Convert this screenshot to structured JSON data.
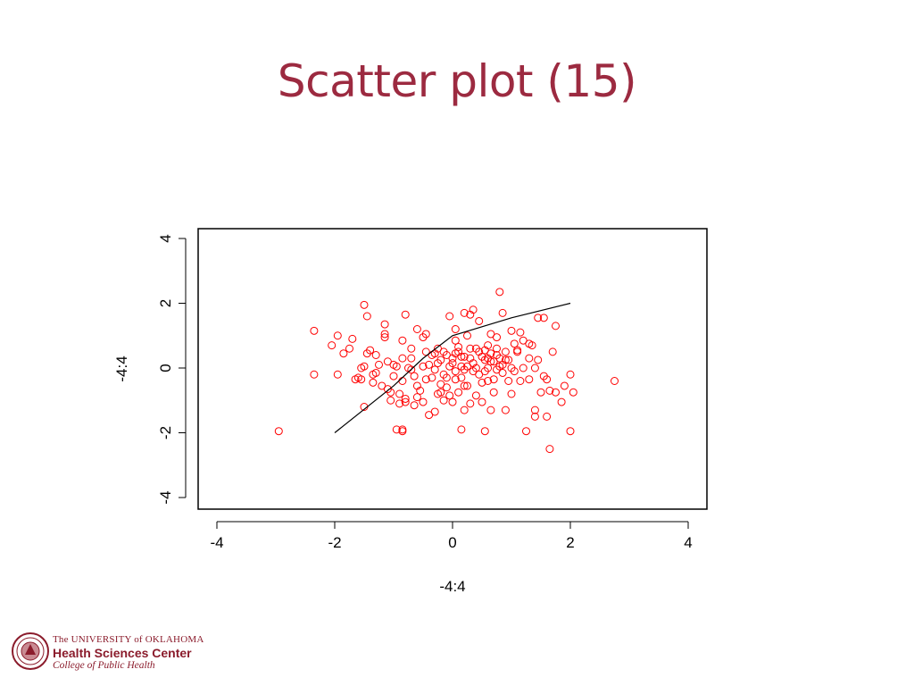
{
  "slide": {
    "title": "Scatter plot (15)"
  },
  "logo": {
    "line1": "The UNIVERSITY of OKLAHOMA",
    "line2": "Health Sciences Center",
    "line3": "College of Public Health"
  },
  "colors": {
    "title": "#9c2a40",
    "points": "#ff0000",
    "line": "#000000",
    "logo": "#8b1c2c"
  },
  "chart_data": {
    "type": "scatter",
    "xlabel": "-4:4",
    "ylabel": "-4:4",
    "xlim": [
      -4,
      4
    ],
    "ylim": [
      -4,
      4
    ],
    "xticks": [
      -4,
      -2,
      0,
      2,
      4
    ],
    "yticks": [
      -4,
      -2,
      0,
      2,
      4
    ],
    "grid": false,
    "series": [
      {
        "type": "scatter",
        "marker": "open-circle",
        "color": "#ff0000",
        "points": [
          [
            -2.95,
            -1.95
          ],
          [
            -2.35,
            1.15
          ],
          [
            -2.35,
            -0.2
          ],
          [
            -2.05,
            0.7
          ],
          [
            -1.95,
            1.0
          ],
          [
            -1.95,
            -0.2
          ],
          [
            -1.85,
            0.45
          ],
          [
            -1.75,
            0.6
          ],
          [
            -1.7,
            0.9
          ],
          [
            -1.65,
            -0.35
          ],
          [
            -1.55,
            -0.35
          ],
          [
            -1.55,
            0.0
          ],
          [
            -1.5,
            0.05
          ],
          [
            -1.5,
            -1.2
          ],
          [
            -1.5,
            1.95
          ],
          [
            -1.45,
            1.6
          ],
          [
            -1.45,
            0.45
          ],
          [
            -1.4,
            0.55
          ],
          [
            -1.35,
            -0.2
          ],
          [
            -1.3,
            -0.15
          ],
          [
            -1.3,
            0.4
          ],
          [
            -1.2,
            -0.55
          ],
          [
            -1.15,
            1.35
          ],
          [
            -1.15,
            0.95
          ],
          [
            -1.15,
            1.05
          ],
          [
            -1.1,
            -0.65
          ],
          [
            -1.1,
            0.2
          ],
          [
            -1.05,
            -0.75
          ],
          [
            -1.05,
            -1.0
          ],
          [
            -1.0,
            0.1
          ],
          [
            -0.95,
            -1.9
          ],
          [
            -0.9,
            -0.8
          ],
          [
            -0.9,
            -1.1
          ],
          [
            -0.85,
            -1.95
          ],
          [
            -0.85,
            -1.9
          ],
          [
            -0.85,
            0.85
          ],
          [
            -0.85,
            -0.4
          ],
          [
            -0.8,
            1.65
          ],
          [
            -0.8,
            -0.95
          ],
          [
            -0.8,
            -1.05
          ],
          [
            -0.75,
            0.0
          ],
          [
            -0.7,
            0.6
          ],
          [
            -0.7,
            -0.05
          ],
          [
            -0.65,
            -1.15
          ],
          [
            -0.65,
            -0.25
          ],
          [
            -0.6,
            -0.55
          ],
          [
            -0.6,
            1.2
          ],
          [
            -0.55,
            -0.7
          ],
          [
            -0.5,
            -1.05
          ],
          [
            -0.5,
            0.95
          ],
          [
            -0.45,
            1.05
          ],
          [
            -0.4,
            -1.45
          ],
          [
            -0.4,
            0.1
          ],
          [
            -0.35,
            -0.3
          ],
          [
            -0.3,
            -1.35
          ],
          [
            -0.3,
            0.45
          ],
          [
            -0.25,
            0.15
          ],
          [
            -0.25,
            -0.8
          ],
          [
            -0.2,
            -0.5
          ],
          [
            -0.2,
            0.25
          ],
          [
            -0.15,
            0.5
          ],
          [
            -0.15,
            -1.0
          ],
          [
            -0.1,
            0.4
          ],
          [
            -0.1,
            -0.6
          ],
          [
            -0.05,
            1.6
          ],
          [
            -0.05,
            -0.85
          ],
          [
            0.0,
            -1.05
          ],
          [
            0.0,
            0.3
          ],
          [
            0.05,
            1.2
          ],
          [
            0.05,
            0.45
          ],
          [
            0.05,
            -0.1
          ],
          [
            0.1,
            -0.75
          ],
          [
            0.1,
            0.65
          ],
          [
            0.15,
            -1.9
          ],
          [
            0.15,
            0.05
          ],
          [
            0.15,
            -0.3
          ],
          [
            0.2,
            -1.3
          ],
          [
            0.2,
            0.35
          ],
          [
            0.2,
            1.7
          ],
          [
            0.25,
            -0.55
          ],
          [
            0.25,
            1.0
          ],
          [
            0.3,
            -1.1
          ],
          [
            0.3,
            1.65
          ],
          [
            0.35,
            1.8
          ],
          [
            0.35,
            0.15
          ],
          [
            0.4,
            -0.85
          ],
          [
            0.4,
            0.6
          ],
          [
            0.45,
            -0.2
          ],
          [
            0.45,
            1.45
          ],
          [
            0.5,
            0.35
          ],
          [
            0.5,
            -1.05
          ],
          [
            0.55,
            -1.95
          ],
          [
            0.55,
            0.55
          ],
          [
            0.6,
            -0.4
          ],
          [
            0.6,
            0.0
          ],
          [
            0.65,
            0.45
          ],
          [
            0.65,
            1.05
          ],
          [
            0.65,
            -1.3
          ],
          [
            0.7,
            0.2
          ],
          [
            0.7,
            -0.75
          ],
          [
            0.75,
            -0.05
          ],
          [
            0.75,
            0.95
          ],
          [
            0.8,
            2.35
          ],
          [
            0.8,
            0.3
          ],
          [
            0.85,
            1.7
          ],
          [
            0.85,
            0.1
          ],
          [
            0.9,
            -1.3
          ],
          [
            0.9,
            0.5
          ],
          [
            0.95,
            0.25
          ],
          [
            1.0,
            1.15
          ],
          [
            1.0,
            -0.8
          ],
          [
            1.05,
            0.75
          ],
          [
            1.05,
            -0.1
          ],
          [
            1.1,
            0.5
          ],
          [
            1.15,
            1.1
          ],
          [
            1.2,
            0.85
          ],
          [
            1.25,
            -1.95
          ],
          [
            1.3,
            0.3
          ],
          [
            1.3,
            -0.35
          ],
          [
            1.35,
            0.7
          ],
          [
            1.4,
            -1.3
          ],
          [
            1.4,
            -1.5
          ],
          [
            1.45,
            0.25
          ],
          [
            1.45,
            1.55
          ],
          [
            1.5,
            -0.75
          ],
          [
            1.55,
            1.55
          ],
          [
            1.55,
            -0.25
          ],
          [
            1.6,
            -1.5
          ],
          [
            1.65,
            -2.5
          ],
          [
            1.65,
            -0.7
          ],
          [
            1.7,
            0.5
          ],
          [
            1.75,
            1.3
          ],
          [
            1.85,
            -1.05
          ],
          [
            1.9,
            -0.55
          ],
          [
            2.0,
            -0.2
          ],
          [
            2.0,
            -1.95
          ],
          [
            2.05,
            -0.75
          ],
          [
            2.75,
            -0.4
          ],
          [
            -0.95,
            0.05
          ],
          [
            -0.7,
            0.3
          ],
          [
            -0.45,
            0.5
          ],
          [
            -0.3,
            -0.05
          ],
          [
            -0.15,
            -0.2
          ],
          [
            0.0,
            0.15
          ],
          [
            0.1,
            0.5
          ],
          [
            0.2,
            -0.05
          ],
          [
            0.3,
            0.6
          ],
          [
            0.4,
            0.0
          ],
          [
            0.5,
            -0.45
          ],
          [
            0.55,
            0.25
          ],
          [
            0.6,
            0.3
          ],
          [
            0.7,
            -0.35
          ],
          [
            0.75,
            0.6
          ],
          [
            0.8,
            0.05
          ],
          [
            0.9,
            0.25
          ],
          [
            1.0,
            0.0
          ],
          [
            1.1,
            0.55
          ],
          [
            1.2,
            0.0
          ],
          [
            1.3,
            0.75
          ],
          [
            1.4,
            0.0
          ],
          [
            -0.5,
            0.05
          ],
          [
            -0.35,
            0.4
          ],
          [
            -0.2,
            -0.75
          ],
          [
            -0.05,
            0.05
          ],
          [
            0.05,
            -0.35
          ],
          [
            0.15,
            0.35
          ],
          [
            0.25,
            0.05
          ],
          [
            0.35,
            -0.1
          ],
          [
            0.45,
            0.5
          ],
          [
            0.55,
            -0.1
          ],
          [
            0.65,
            0.2
          ],
          [
            0.75,
            0.4
          ],
          [
            0.85,
            -0.15
          ],
          [
            0.95,
            -0.4
          ],
          [
            -1.0,
            -0.25
          ],
          [
            -0.85,
            0.3
          ],
          [
            -0.6,
            -0.9
          ],
          [
            -0.45,
            -0.35
          ],
          [
            -0.25,
            0.6
          ],
          [
            -0.1,
            -0.3
          ],
          [
            0.05,
            0.85
          ],
          [
            0.2,
            -0.55
          ],
          [
            0.3,
            0.3
          ],
          [
            0.6,
            0.7
          ],
          [
            1.6,
            -0.35
          ],
          [
            1.75,
            -0.75
          ],
          [
            1.15,
            -0.4
          ],
          [
            -1.25,
            0.1
          ],
          [
            -1.6,
            -0.3
          ],
          [
            -1.35,
            -0.45
          ]
        ]
      },
      {
        "type": "line",
        "color": "#000000",
        "points": [
          [
            -2.0,
            -2.0
          ],
          [
            -1.0,
            -0.55
          ],
          [
            -0.5,
            0.3
          ],
          [
            0.0,
            1.0
          ],
          [
            1.0,
            1.55
          ],
          [
            2.0,
            2.0
          ]
        ]
      }
    ]
  }
}
